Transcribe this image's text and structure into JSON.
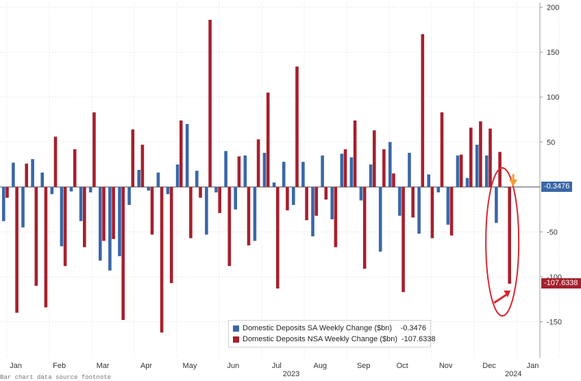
{
  "colors": {
    "sa": "#3b67a7",
    "nsa": "#a5202e",
    "grid": "#d9d9d9",
    "annotation": "#d8262f",
    "arrow_orange": "#f0a030"
  },
  "legend": {
    "sa_label": "Domestic Deposits SA Weekly Change ($bn)",
    "sa_value": "-0.3476",
    "nsa_label": "Domestic Deposits NSA Weekly Change ($bn)",
    "nsa_value": "-107.6338"
  },
  "tags": {
    "sa_last": "-0.3476",
    "nsa_last": "-107.6338"
  },
  "footer": "Bar chart data source footnote",
  "chart_data": {
    "type": "bar",
    "ylim": [
      -190,
      205
    ],
    "yticks": [
      -150,
      -100,
      -50,
      50,
      100,
      150,
      200
    ],
    "grid": true,
    "legend_position": "bottom-right",
    "years": [
      {
        "label": "2023",
        "week": 30
      },
      {
        "label": "2024",
        "week": 53
      }
    ],
    "months": [
      {
        "label": "Jan",
        "week": 1.5
      },
      {
        "label": "Feb",
        "week": 6
      },
      {
        "label": "Mar",
        "week": 10.5
      },
      {
        "label": "Apr",
        "week": 15
      },
      {
        "label": "May",
        "week": 19.5
      },
      {
        "label": "Jun",
        "week": 24
      },
      {
        "label": "Jul",
        "week": 28.5
      },
      {
        "label": "Aug",
        "week": 33
      },
      {
        "label": "Sep",
        "week": 37.5
      },
      {
        "label": "Oct",
        "week": 41.5
      },
      {
        "label": "Nov",
        "week": 46
      },
      {
        "label": "Dec",
        "week": 50.5
      },
      {
        "label": "Jan",
        "week": 55
      }
    ],
    "series": [
      {
        "name": "Domestic Deposits SA Weekly Change ($bn)",
        "values": [
          -38,
          27,
          -45,
          31,
          16,
          -8,
          -66,
          -5,
          -38,
          -6,
          -82,
          -93,
          -77,
          -20,
          19,
          -4,
          16,
          -8,
          25,
          70,
          18,
          -53,
          -6,
          40,
          -25,
          35,
          -60,
          38,
          5,
          28,
          -20,
          28,
          -55,
          35,
          -36,
          37,
          33,
          -15,
          25,
          -72,
          50,
          -32,
          38,
          -52,
          14,
          -6,
          -42,
          35,
          10,
          47,
          35,
          -40,
          -0.3476
        ]
      },
      {
        "name": "Domestic Deposits NSA Weekly Change ($bn)",
        "values": [
          -12,
          -140,
          26,
          -110,
          -134,
          56,
          -88,
          42,
          -67,
          83,
          -60,
          -58,
          -148,
          64,
          47,
          -53,
          -162,
          -107,
          74,
          -57,
          -12,
          186,
          -29,
          -88,
          34,
          -65,
          53,
          105,
          -113,
          -26,
          134,
          -37,
          -32,
          -14,
          -67,
          42,
          74,
          -91,
          63,
          42,
          15,
          -117,
          -34,
          170,
          -57,
          83,
          -54,
          36,
          66,
          73,
          65,
          39,
          -107.6338
        ]
      }
    ]
  }
}
